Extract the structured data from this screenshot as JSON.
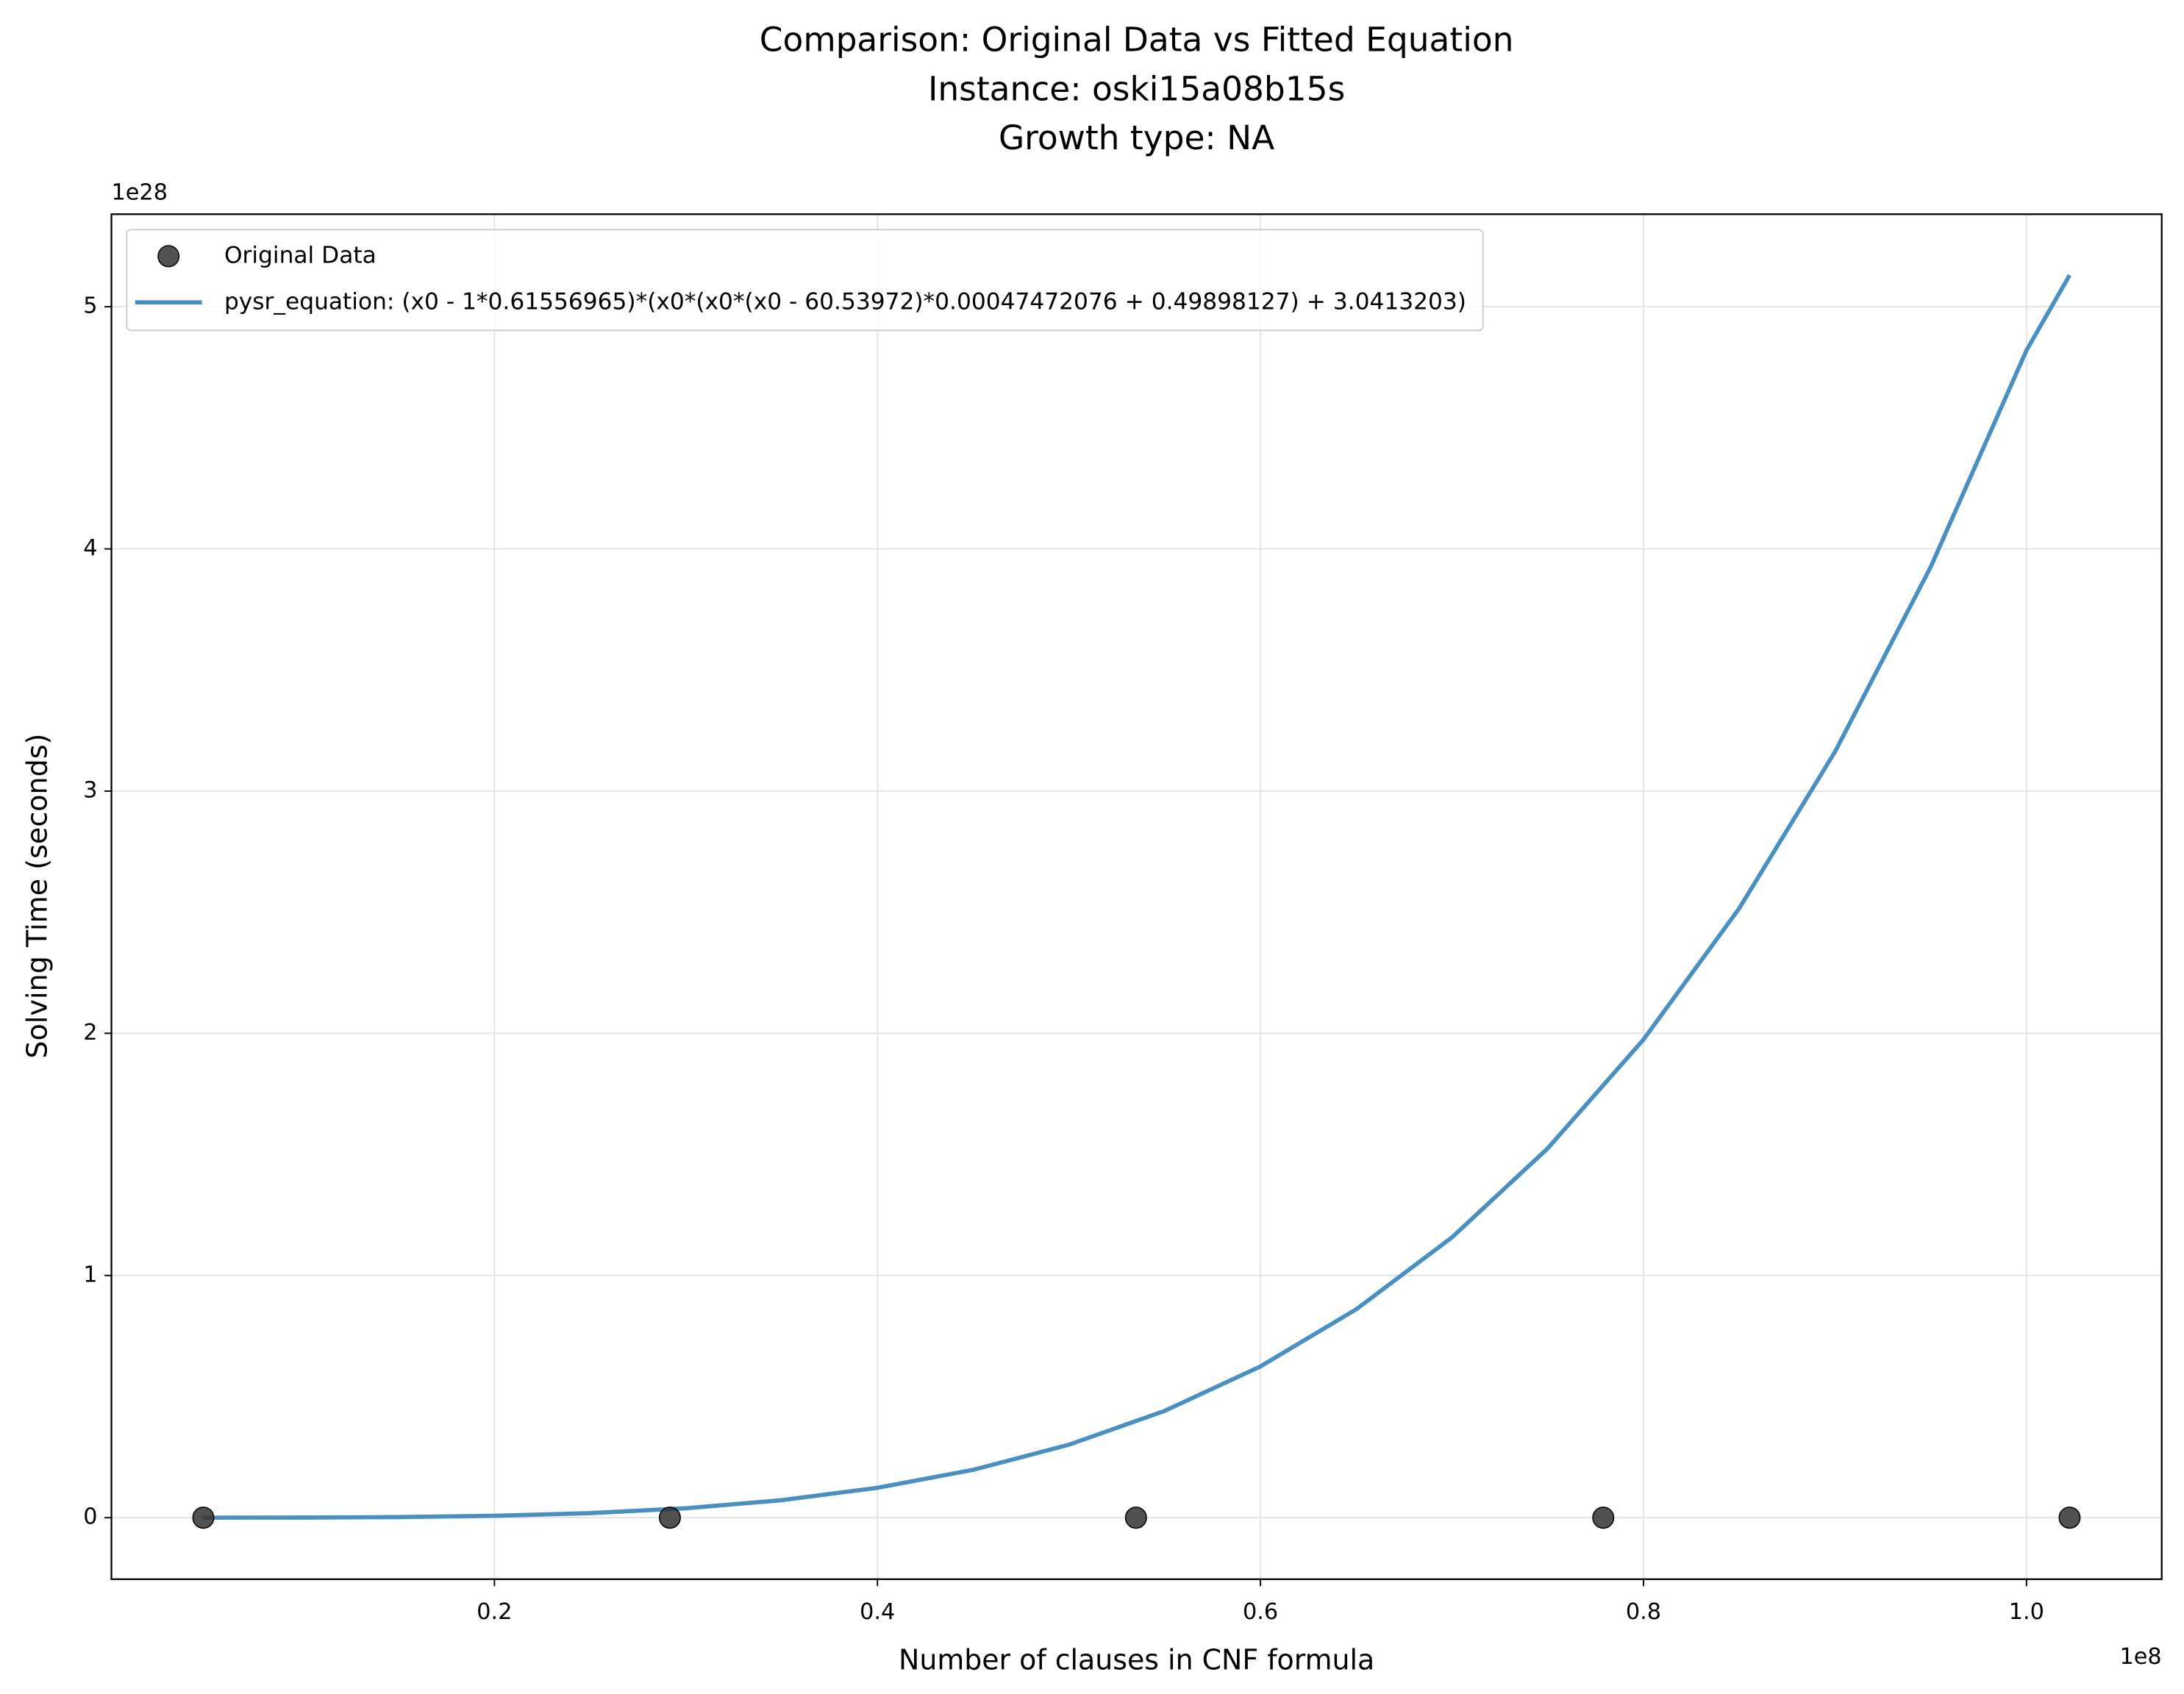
{
  "chart_data": {
    "type": "scatter",
    "title": [
      "Comparison: Original Data vs Fitted Equation",
      "Instance: oski15a08b15s",
      "Growth type: NA"
    ],
    "x_label": "Number of clauses in CNF formula",
    "y_label": "Solving Time (seconds)",
    "x_offset_label": "1e8",
    "y_offset_label": "1e28",
    "xlim": [
      0.0,
      1.0706
    ],
    "ylim": [
      -0.254,
      5.382
    ],
    "xticks": [
      0.2,
      0.4,
      0.6,
      0.8,
      {
        "value": 1,
        "label": "1.0"
      }
    ],
    "yticks": [
      0,
      1,
      2,
      3,
      4,
      5
    ],
    "grid": true,
    "legend": "upper left",
    "series": [
      {
        "name": "Original Data",
        "type": "scatter",
        "color": "#333333",
        "x": [
          0.048,
          0.2916,
          0.535,
          0.779,
          1.0225
        ],
        "values": [
          0,
          0,
          0,
          0,
          0
        ]
      },
      {
        "name": "pysr_equation: (x0 - 1*0.61556965)*(x0*(x0*(x0 - 60.53972)*0.00047472076 + 0.49898127) + 3.0413203)",
        "type": "line",
        "color": "#4a8fc1",
        "x": [
          0.048,
          0.1,
          0.15,
          0.2,
          0.25,
          0.3,
          0.35,
          0.4,
          0.45,
          0.5,
          0.55,
          0.6,
          0.65,
          0.7,
          0.75,
          0.8,
          0.85,
          0.9,
          0.95,
          1.0,
          1.0225
        ],
        "values": [
          0.0,
          0.0005,
          0.0024,
          0.0077,
          0.0188,
          0.039,
          0.0723,
          0.1234,
          0.1976,
          0.3013,
          0.4411,
          0.6247,
          0.8604,
          1.1573,
          1.5251,
          1.9743,
          2.516,
          3.1624,
          3.926,
          4.82,
          5.13
        ]
      }
    ]
  }
}
